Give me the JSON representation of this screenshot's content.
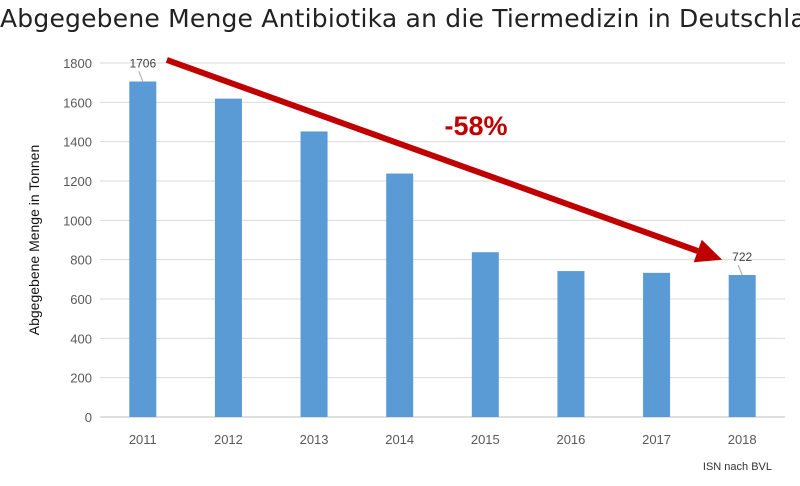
{
  "chart_data": {
    "type": "bar",
    "title": "Abgegebene Menge Antibiotika an die Tiermedizin in Deutschland",
    "xlabel": "",
    "ylabel": "Abgegebene Menge in Tonnen",
    "categories": [
      "2011",
      "2012",
      "2013",
      "2014",
      "2015",
      "2016",
      "2017",
      "2018"
    ],
    "values": [
      1706,
      1619,
      1452,
      1238,
      838,
      742,
      733,
      722
    ],
    "ylim": [
      0,
      1800
    ],
    "yticks": [
      0,
      200,
      400,
      600,
      800,
      1000,
      1200,
      1400,
      1600,
      1800
    ],
    "grid": true,
    "bar_color": "#5b9bd5",
    "data_labels": [
      {
        "category": "2011",
        "text": "1706"
      },
      {
        "category": "2018",
        "text": "722"
      }
    ],
    "annotation": {
      "text": "-58%",
      "color": "#c00000",
      "arrow_from": {
        "category": "2011",
        "value": 1780
      },
      "arrow_to": {
        "category": "2018",
        "value": 840
      }
    },
    "source": "ISN nach BVL"
  }
}
